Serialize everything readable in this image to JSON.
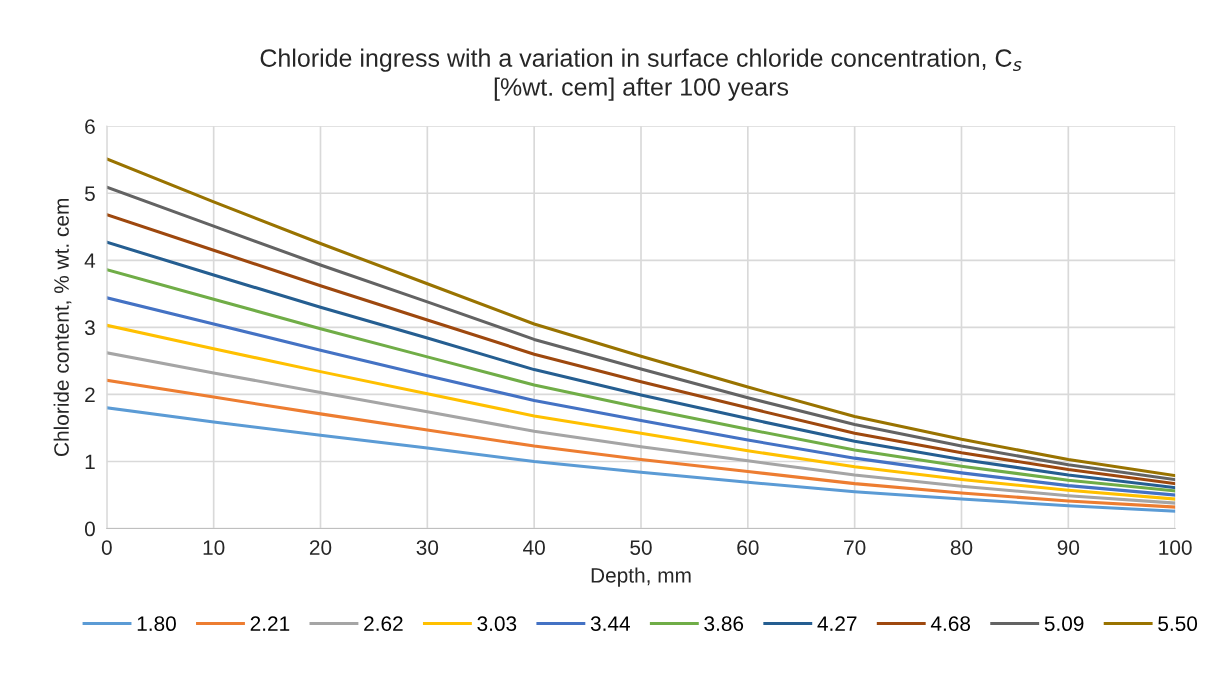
{
  "chart_data": {
    "type": "line",
    "title": "Chloride ingress with a variation in surface chloride concentration, C$_{s}$\n[%wt. cem] after 100 years",
    "xlabel": "Depth, mm",
    "ylabel": "Chloride content, % wt. cem",
    "x": [
      0,
      10,
      20,
      30,
      40,
      50,
      60,
      70,
      80,
      90,
      100
    ],
    "series": [
      {
        "name": "1.80",
        "color": "#5b9bd5",
        "values": [
          1.8,
          1.59,
          1.39,
          1.2,
          1.0,
          0.84,
          0.69,
          0.55,
          0.44,
          0.34,
          0.26
        ]
      },
      {
        "name": "2.21",
        "color": "#ed7d31",
        "values": [
          2.21,
          1.96,
          1.71,
          1.47,
          1.23,
          1.03,
          0.85,
          0.67,
          0.53,
          0.41,
          0.32
        ]
      },
      {
        "name": "2.62",
        "color": "#a5a5a5",
        "values": [
          2.62,
          2.32,
          2.03,
          1.74,
          1.45,
          1.22,
          1.01,
          0.8,
          0.63,
          0.49,
          0.38
        ]
      },
      {
        "name": "3.03",
        "color": "#ffc000",
        "values": [
          3.03,
          2.68,
          2.34,
          2.01,
          1.68,
          1.42,
          1.16,
          0.92,
          0.73,
          0.57,
          0.44
        ]
      },
      {
        "name": "3.44",
        "color": "#4472c4",
        "values": [
          3.44,
          3.05,
          2.66,
          2.28,
          1.91,
          1.61,
          1.32,
          1.05,
          0.83,
          0.64,
          0.5
        ]
      },
      {
        "name": "3.86",
        "color": "#70ad47",
        "values": [
          3.86,
          3.42,
          2.98,
          2.56,
          2.14,
          1.8,
          1.48,
          1.17,
          0.93,
          0.72,
          0.56
        ]
      },
      {
        "name": "4.27",
        "color": "#255e91",
        "values": [
          4.27,
          3.78,
          3.3,
          2.84,
          2.37,
          1.99,
          1.64,
          1.3,
          1.03,
          0.8,
          0.61
        ]
      },
      {
        "name": "4.68",
        "color": "#9e480e",
        "values": [
          4.68,
          4.15,
          3.62,
          3.11,
          2.6,
          2.19,
          1.8,
          1.42,
          1.13,
          0.88,
          0.67
        ]
      },
      {
        "name": "5.09",
        "color": "#636363",
        "values": [
          5.09,
          4.51,
          3.93,
          3.38,
          2.82,
          2.38,
          1.95,
          1.55,
          1.23,
          0.95,
          0.73
        ]
      },
      {
        "name": "5.50",
        "color": "#997300",
        "values": [
          5.51,
          4.87,
          4.25,
          3.65,
          3.05,
          2.57,
          2.11,
          1.67,
          1.33,
          1.03,
          0.79
        ]
      }
    ],
    "xlim": [
      0,
      100
    ],
    "xticks": [
      0,
      10,
      20,
      30,
      40,
      50,
      60,
      70,
      80,
      90,
      100
    ],
    "ylim": [
      0,
      6
    ],
    "yticks": [
      0,
      1,
      2,
      3,
      4,
      5,
      6
    ],
    "grid": true,
    "legend": "bottom",
    "marker": "none",
    "line_style": "solid"
  }
}
